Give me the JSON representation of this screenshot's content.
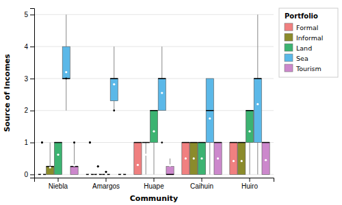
{
  "chart_data": {
    "type": "box",
    "title": "Portfolio",
    "xlabel": "Community",
    "ylabel": "Source of Incomes",
    "categories": [
      "Niebla",
      "Amargos",
      "Huape",
      "Caihuin",
      "Huiro"
    ],
    "ylim": [
      -0.1,
      5.2
    ],
    "yticks": [
      0,
      1,
      2,
      3,
      4,
      5
    ],
    "grid": true,
    "legend": "upper right",
    "series": [
      {
        "name": "Formal",
        "color": "#F08080",
        "values": [
          {
            "q1": 0,
            "median": 0,
            "q3": 0,
            "whislo": 0,
            "whishi": 0,
            "mean": 0,
            "fliers_above": [
              1,
              1,
              1
            ],
            "fliers_below": []
          },
          {
            "q1": 0,
            "median": 0,
            "q3": 0,
            "whislo": 0,
            "whishi": 0,
            "mean": 0,
            "fliers_above": [
              1,
              1,
              1,
              1
            ],
            "fliers_below": []
          },
          {
            "q1": 0,
            "median": 1,
            "q3": 1,
            "whislo": 0,
            "whishi": 1,
            "mean": 0.3,
            "fliers_above": [],
            "fliers_below": []
          },
          {
            "q1": 0,
            "median": 1,
            "q3": 1,
            "whislo": 0,
            "whishi": 1,
            "mean": 0.5,
            "fliers_above": [],
            "fliers_below": []
          },
          {
            "q1": 0,
            "median": 1,
            "q3": 1,
            "whislo": 0,
            "whishi": 1,
            "mean": 0.42,
            "fliers_above": [],
            "fliers_below": []
          }
        ]
      },
      {
        "name": "Informal",
        "color": "#8B8B2B",
        "values": [
          {
            "q1": 0,
            "median": 0.25,
            "q3": 0.25,
            "whislo": 0,
            "whishi": 1,
            "mean": 0.22,
            "fliers_above": [],
            "fliers_below": []
          },
          {
            "q1": 0,
            "median": 0,
            "q3": 0,
            "whislo": 0,
            "whishi": 0,
            "mean": 0,
            "fliers_above": [
              0.25,
              0.25,
              0.25
            ],
            "fliers_below": []
          },
          {
            "q1": 1,
            "median": 1,
            "q3": 1,
            "whislo": 0,
            "whishi": 1,
            "mean": 0.62,
            "fliers_above": [],
            "fliers_below": []
          },
          {
            "q1": 0,
            "median": 1,
            "q3": 1,
            "whislo": 0,
            "whishi": 1,
            "mean": 0.5,
            "fliers_above": [],
            "fliers_below": []
          },
          {
            "q1": 0,
            "median": 1,
            "q3": 1,
            "whislo": 0,
            "whishi": 1,
            "mean": 0.42,
            "fliers_above": [],
            "fliers_below": []
          }
        ]
      },
      {
        "name": "Land",
        "color": "#3CB371",
        "values": [
          {
            "q1": 0,
            "median": 1,
            "q3": 1,
            "whislo": 0,
            "whishi": 1,
            "mean": 0.62,
            "fliers_above": [],
            "fliers_below": []
          },
          {
            "q1": 0,
            "median": 0,
            "q3": 0,
            "whislo": 0,
            "whishi": 0,
            "mean": 0,
            "fliers_above": [
              0.08,
              0.08
            ],
            "fliers_below": []
          },
          {
            "q1": 1,
            "median": 2,
            "q3": 2,
            "whislo": 0,
            "whishi": 2,
            "mean": 1.35,
            "fliers_above": [],
            "fliers_below": []
          },
          {
            "q1": 0,
            "median": 1,
            "q3": 1,
            "whislo": 0,
            "whishi": 1,
            "mean": 0.5,
            "fliers_above": [],
            "fliers_below": []
          },
          {
            "q1": 1,
            "median": 2,
            "q3": 2,
            "whislo": 0,
            "whishi": 2,
            "mean": 1.35,
            "fliers_above": [],
            "fliers_below": []
          }
        ]
      },
      {
        "name": "Sea",
        "color": "#5BB8E8",
        "values": [
          {
            "q1": 3,
            "median": 3,
            "q3": 4,
            "whislo": 2,
            "whishi": 5,
            "mean": 3.2,
            "fliers_above": [],
            "fliers_below": [
              3
            ]
          },
          {
            "q1": 2.3,
            "median": 3,
            "q3": 3,
            "whislo": 2,
            "whishi": 4,
            "mean": 2.82,
            "fliers_above": [],
            "fliers_below": [
              2.0
            ]
          },
          {
            "q1": 2,
            "median": 3,
            "q3": 3,
            "whislo": 2,
            "whishi": 4,
            "mean": 2.55,
            "fliers_above": [],
            "fliers_below": [
              1
            ]
          },
          {
            "q1": 1,
            "median": 2,
            "q3": 3,
            "whislo": 0,
            "whishi": 3,
            "mean": 1.75,
            "fliers_above": [],
            "fliers_below": []
          },
          {
            "q1": 1,
            "median": 3,
            "q3": 3,
            "whislo": 0,
            "whishi": 5,
            "mean": 2.2,
            "fliers_above": [],
            "fliers_below": []
          }
        ]
      },
      {
        "name": "Tourism",
        "color": "#CC88CC",
        "values": [
          {
            "q1": 0,
            "median": 0.25,
            "q3": 0.25,
            "whislo": 0,
            "whishi": 1,
            "mean": 0.28,
            "fliers_above": [
              1,
              1
            ],
            "fliers_below": []
          },
          {
            "q1": 0,
            "median": 0,
            "q3": 0,
            "whislo": 0,
            "whishi": 0,
            "mean": 0,
            "fliers_above": [],
            "fliers_below": []
          },
          {
            "q1": 0,
            "median": 0,
            "q3": 0.25,
            "whislo": 0,
            "whishi": 0.5,
            "mean": 0.28,
            "fliers_above": [],
            "fliers_below": []
          },
          {
            "q1": 0,
            "median": 1,
            "q3": 1,
            "whislo": 0,
            "whishi": 1,
            "mean": 0.5,
            "fliers_above": [],
            "fliers_below": []
          },
          {
            "q1": 0,
            "median": 1,
            "q3": 1,
            "whislo": 0,
            "whishi": 1,
            "mean": 0.45,
            "fliers_above": [],
            "fliers_below": []
          }
        ]
      }
    ]
  }
}
